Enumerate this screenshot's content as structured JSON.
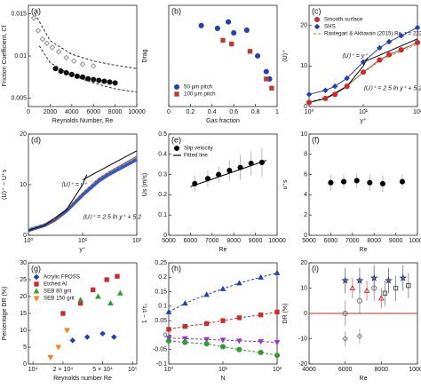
{
  "chart_data": [
    {
      "label": "(a)",
      "type": "scatter",
      "xlabel": "Reynolds Number, Re",
      "ylabel": "Friction Coefficient, Cf",
      "xlim": [
        0,
        10000
      ],
      "xticks": [
        0,
        2000,
        4000,
        6000,
        8000,
        10000
      ],
      "ylim": [
        0.004,
        0.016
      ],
      "yticks": [
        0.005,
        0.01,
        0.015
      ],
      "series": [
        {
          "color": "#888888",
          "marker": "diamond",
          "filled": false,
          "x": [
            500,
            900,
            1300,
            1700,
            2200,
            2800,
            3500,
            4200,
            5000,
            6000
          ],
          "values": [
            0.0145,
            0.013,
            0.012,
            0.0115,
            0.011,
            0.0105,
            0.0098,
            0.0094,
            0.009,
            0.0088
          ]
        },
        {
          "color": "#111111",
          "marker": "circle",
          "filled": true,
          "x": [
            2500,
            3000,
            3500,
            4000,
            4500,
            5000,
            5500,
            6000,
            6500,
            7000,
            7500,
            8000
          ],
          "values": [
            0.0085,
            0.0082,
            0.008,
            0.0078,
            0.0076,
            0.0075,
            0.0073,
            0.0072,
            0.0071,
            0.007,
            0.0069,
            0.0068
          ]
        },
        {
          "color": "#333333",
          "line": true,
          "dash": true,
          "x": [
            600,
            2000,
            4000,
            6000,
            8000,
            10000
          ],
          "values": [
            0.015,
            0.0118,
            0.0102,
            0.0094,
            0.0089,
            0.0085
          ]
        },
        {
          "color": "#333333",
          "line": true,
          "dash": true,
          "x": [
            1000,
            2000,
            4000,
            6000,
            8000,
            10000
          ],
          "values": [
            0.0112,
            0.0092,
            0.0077,
            0.0068,
            0.0061,
            0.0057
          ]
        }
      ]
    },
    {
      "label": "(b)",
      "type": "scatter",
      "xlabel": "Gas fraction",
      "ylabel": "Drag",
      "xlim": [
        0,
        1
      ],
      "xticks": [
        0,
        0.2,
        0.4,
        0.6,
        0.8,
        1
      ],
      "ylim": [
        0,
        1.1
      ],
      "yticks": [],
      "legend": "lower left",
      "series": [
        {
          "name": "50 μm pitch",
          "color": "#1f3fbf",
          "marker": "circle",
          "filled": true,
          "x": [
            0.3,
            0.45,
            0.55,
            0.6,
            0.72,
            0.82,
            0.9,
            0.93
          ],
          "values": [
            0.88,
            0.85,
            0.92,
            0.8,
            0.83,
            0.55,
            0.38,
            0.3
          ]
        },
        {
          "name": "100 μm pitch",
          "color": "#c0392b",
          "marker": "square",
          "filled": true,
          "x": [
            0.5,
            0.58,
            0.75,
            0.9,
            0.95
          ],
          "values": [
            0.72,
            0.68,
            0.6,
            0.3,
            0.2
          ]
        }
      ]
    },
    {
      "label": "(c)",
      "type": "line",
      "xlabel": "y⁺",
      "ylabel": "⟨U⟩⁺",
      "xscale": "log",
      "xlim": [
        1,
        100
      ],
      "xticks": [
        {
          "value": 1,
          "label": "10⁰"
        },
        {
          "value": 10,
          "label": "10¹"
        },
        {
          "value": 100,
          "label": "10²"
        }
      ],
      "ylim": [
        0,
        25
      ],
      "yticks": [
        0,
        10,
        20
      ],
      "legend": "upper left",
      "annotations": [
        "⟨U⟩⁺ = y⁺",
        "⟨U⟩⁺ = 2.5 ln y⁺ + 5.2"
      ],
      "series": [
        {
          "name": "Smooth surface",
          "color": "#d62728",
          "marker": "circle",
          "filled": true,
          "line": true,
          "x": [
            1,
            2,
            3,
            5,
            10,
            20,
            30,
            50,
            100
          ],
          "values": [
            1,
            2,
            3,
            5,
            8.5,
            11.5,
            12.8,
            14,
            15.8
          ]
        },
        {
          "name": "SHS",
          "color": "#1f3fbf",
          "marker": "diamond",
          "filled": true,
          "line": true,
          "x": [
            1,
            2,
            3,
            5,
            10,
            20,
            30,
            50,
            100
          ],
          "values": [
            3,
            4,
            5,
            7,
            11,
            14.5,
            16,
            17.5,
            19.5
          ]
        },
        {
          "name": "Rastegari & Akhavan (2015) Re_τ = 222",
          "color": "#6fc23a",
          "line": true,
          "dash": true,
          "x": [
            1,
            2,
            3,
            5,
            10,
            20,
            30,
            50,
            100
          ],
          "values": [
            1.2,
            2.2,
            3.2,
            5.1,
            8.4,
            11.2,
            12.4,
            13.6,
            15.4
          ]
        },
        {
          "color": "#000000",
          "line": true,
          "x": [
            1,
            2,
            5,
            10,
            12
          ],
          "values": [
            1,
            2,
            5,
            10,
            12
          ]
        },
        {
          "color": "#000000",
          "line": true,
          "x": [
            10,
            100
          ],
          "values": [
            10.96,
            16.71
          ]
        }
      ]
    },
    {
      "label": "(d)",
      "type": "line",
      "xlabel": "y⁺",
      "ylabel": "⟨U⟩⁺ − U⁺s",
      "xscale": "log",
      "xlim": [
        1,
        100
      ],
      "xticks": [
        {
          "value": 1,
          "label": "10⁰"
        },
        {
          "value": 10,
          "label": "10¹"
        },
        {
          "value": 100,
          "label": "10²"
        }
      ],
      "ylim": [
        0,
        20
      ],
      "yticks": [
        0,
        10,
        20
      ],
      "annotations": [
        "⟨U⟩⁺ = y⁺",
        "⟨U⟩⁺ = 2.5 ln y⁺ + 5.2"
      ],
      "series": [
        {
          "color": "#2f55d4",
          "line": true,
          "width": 4,
          "x": [
            1,
            2,
            3,
            5,
            10,
            20,
            30,
            50,
            100
          ],
          "values": [
            1,
            2,
            3,
            4.8,
            8,
            10.8,
            12,
            13.3,
            15
          ]
        },
        {
          "color": "#d62728",
          "line": true,
          "x": [
            1,
            2,
            3,
            5,
            10,
            20,
            30,
            50,
            100
          ],
          "values": [
            1,
            2,
            3,
            5,
            8.4,
            11.3,
            12.5,
            13.8,
            15.6
          ]
        },
        {
          "color": "#6fc23a",
          "line": true,
          "dash": true,
          "x": [
            1,
            2,
            3,
            5,
            10,
            20,
            30,
            50,
            100
          ],
          "values": [
            1.2,
            2.2,
            3.2,
            5.1,
            8.4,
            11.2,
            12.4,
            13.6,
            15.4
          ]
        },
        {
          "color": "#000000",
          "line": true,
          "x": [
            1,
            2,
            5,
            10,
            12
          ],
          "values": [
            1,
            2,
            5,
            10,
            12
          ]
        },
        {
          "color": "#000000",
          "line": true,
          "x": [
            10,
            100
          ],
          "values": [
            10.96,
            16.71
          ]
        }
      ]
    },
    {
      "label": "(e)",
      "type": "scatter",
      "xlabel": "Re",
      "ylabel": "Us (m/s)",
      "xlim": [
        5000,
        10000
      ],
      "xticks": [
        5000,
        6000,
        7000,
        8000,
        9000,
        10000
      ],
      "ylim": [
        0,
        0.5
      ],
      "yticks": [
        0,
        0.1,
        0.2,
        0.3,
        0.4,
        0.5
      ],
      "legend": "upper left",
      "series": [
        {
          "name": "Slip velocity",
          "color": "#000000",
          "marker": "circle",
          "filled": true,
          "x": [
            6200,
            6800,
            7300,
            7800,
            8300,
            8800,
            9300
          ],
          "values": [
            0.255,
            0.28,
            0.3,
            0.32,
            0.335,
            0.355,
            0.36
          ],
          "errors": [
            0.04,
            0.04,
            0.04,
            0.05,
            0.06,
            0.06,
            0.07
          ]
        },
        {
          "name": "Fitted line",
          "color": "#000000",
          "line": true,
          "x": [
            6000,
            9500
          ],
          "values": [
            0.24,
            0.37
          ]
        }
      ]
    },
    {
      "label": "(f)",
      "type": "scatter",
      "xlabel": "Re",
      "ylabel": "u⁺s",
      "xlim": [
        5000,
        10000
      ],
      "xticks": [
        5000,
        6000,
        7000,
        8000,
        9000,
        10000
      ],
      "ylim": [
        0,
        10
      ],
      "yticks": [
        0,
        2,
        4,
        6,
        8,
        10
      ],
      "series": [
        {
          "color": "#000000",
          "marker": "circle",
          "filled": true,
          "x": [
            6000,
            6600,
            7200,
            7800,
            8400,
            9300
          ],
          "values": [
            5.2,
            5.3,
            5.4,
            5.2,
            5.1,
            5.3
          ],
          "errors": [
            0.8,
            0.7,
            0.7,
            0.8,
            0.8,
            0.7
          ]
        }
      ]
    },
    {
      "label": "(g)",
      "type": "scatter",
      "xlabel": "Reynolds number Re",
      "ylabel": "Percentage DR (%)",
      "xscale": "log",
      "xlim": [
        9000,
        110000
      ],
      "xticks": [
        {
          "value": 10000,
          "label": "10⁴"
        },
        {
          "value": 20000,
          "label": "2 × 10⁴"
        },
        {
          "value": 50000,
          "label": "5 × 10⁴"
        },
        {
          "value": 100000,
          "label": "10⁵"
        }
      ],
      "ylim": [
        0,
        30
      ],
      "yticks": [
        0,
        5,
        10,
        15,
        20,
        25,
        30
      ],
      "legend": "upper left",
      "series": [
        {
          "name": "Acrylic FPOSS",
          "color": "#1f3fbf",
          "marker": "diamond",
          "filled": true,
          "x": [
            25000,
            35000,
            50000,
            65000
          ],
          "values": [
            7,
            8,
            9,
            8
          ]
        },
        {
          "name": "Etched Al",
          "color": "#d62728",
          "marker": "square",
          "filled": true,
          "x": [
            20000,
            30000,
            40000,
            55000,
            70000
          ],
          "values": [
            15,
            18,
            22,
            25,
            26
          ]
        },
        {
          "name": "SEB 80 grit",
          "color": "#2ca02c",
          "marker": "triangle",
          "filled": true,
          "x": [
            30000,
            45000,
            60000,
            75000
          ],
          "values": [
            19,
            20,
            18,
            21
          ]
        },
        {
          "name": "SEB 150 grit",
          "color": "#ff7f0e",
          "marker": "triangle-down",
          "filled": true,
          "x": [
            15000,
            18000,
            22000
          ],
          "values": [
            2,
            5,
            10
          ]
        }
      ]
    },
    {
      "label": "(h)",
      "type": "scatter",
      "xlabel": "N",
      "ylabel": "1 − τ/τ₀",
      "xscale": "log",
      "xlim": [
        1,
        100
      ],
      "xticks": [
        {
          "value": 1,
          "label": "10⁰"
        },
        {
          "value": 10,
          "label": "10¹"
        },
        {
          "value": 100,
          "label": "10²"
        }
      ],
      "ylim": [
        -0.1,
        0.25
      ],
      "yticks": [
        -0.1,
        -0.05,
        0,
        0.05,
        0.1,
        0.15,
        0.2,
        0.25
      ],
      "series": [
        {
          "color": "#1f3fbf",
          "marker": "triangle",
          "filled": true,
          "line": true,
          "dash": true,
          "x": [
            1,
            2,
            5,
            10,
            20,
            50,
            100
          ],
          "values": [
            0.08,
            0.11,
            0.14,
            0.16,
            0.18,
            0.2,
            0.215
          ]
        },
        {
          "color": "#d62728",
          "marker": "square",
          "filled": true,
          "line": true,
          "dash": true,
          "x": [
            1,
            2,
            5,
            10,
            20,
            50,
            100
          ],
          "values": [
            0.02,
            0.03,
            0.04,
            0.05,
            0.06,
            0.07,
            0.08
          ]
        },
        {
          "color": "#9b30d9",
          "marker": "triangle-down",
          "filled": true,
          "line": true,
          "dash": true,
          "x": [
            1,
            2,
            5,
            10,
            20,
            50,
            100
          ],
          "values": [
            -0.01,
            -0.012,
            -0.015,
            -0.017,
            -0.02,
            -0.022,
            -0.025
          ]
        },
        {
          "color": "#2ca02c",
          "marker": "circle",
          "filled": true,
          "line": true,
          "dash": true,
          "x": [
            1,
            2,
            5,
            10,
            20,
            50,
            100
          ],
          "values": [
            -0.02,
            -0.025,
            -0.03,
            -0.04,
            -0.05,
            -0.06,
            -0.07
          ]
        }
      ]
    },
    {
      "label": "(i)",
      "type": "scatter",
      "xlabel": "Re",
      "ylabel": "DR (%)",
      "xlim": [
        4000,
        10000
      ],
      "xticks": [
        4000,
        6000,
        8000,
        10000
      ],
      "ylim": [
        -20,
        20
      ],
      "yticks": [
        -20,
        -10,
        0,
        10,
        20
      ],
      "refline": 0,
      "refcolor": "#d62728",
      "series": [
        {
          "color": "#1a2a6c",
          "marker": "star",
          "filled": false,
          "x": [
            6000,
            6800,
            7600,
            8400,
            9200
          ],
          "values": [
            13,
            13,
            14,
            13,
            14
          ],
          "errors": [
            5,
            5,
            5,
            5,
            5
          ]
        },
        {
          "color": "#d62728",
          "marker": "triangle",
          "filled": false,
          "x": [
            6400,
            7200,
            8000
          ],
          "values": [
            10,
            9,
            6
          ],
          "errors": [
            4,
            4,
            4
          ]
        },
        {
          "color": "#666666",
          "marker": "circle",
          "filled": false,
          "x": [
            6000,
            6800,
            7600
          ],
          "values": [
            0,
            5,
            10
          ],
          "errors": [
            5,
            5,
            5
          ]
        },
        {
          "color": "#444444",
          "marker": "square",
          "filled": false,
          "x": [
            8200,
            8800,
            9500
          ],
          "values": [
            8,
            10,
            11
          ],
          "errors": [
            5,
            5,
            5
          ]
        },
        {
          "color": "#777777",
          "marker": "diamond",
          "filled": false,
          "x": [
            6000,
            6800
          ],
          "values": [
            -10,
            -9
          ],
          "errors": [
            3,
            3
          ]
        }
      ]
    }
  ]
}
